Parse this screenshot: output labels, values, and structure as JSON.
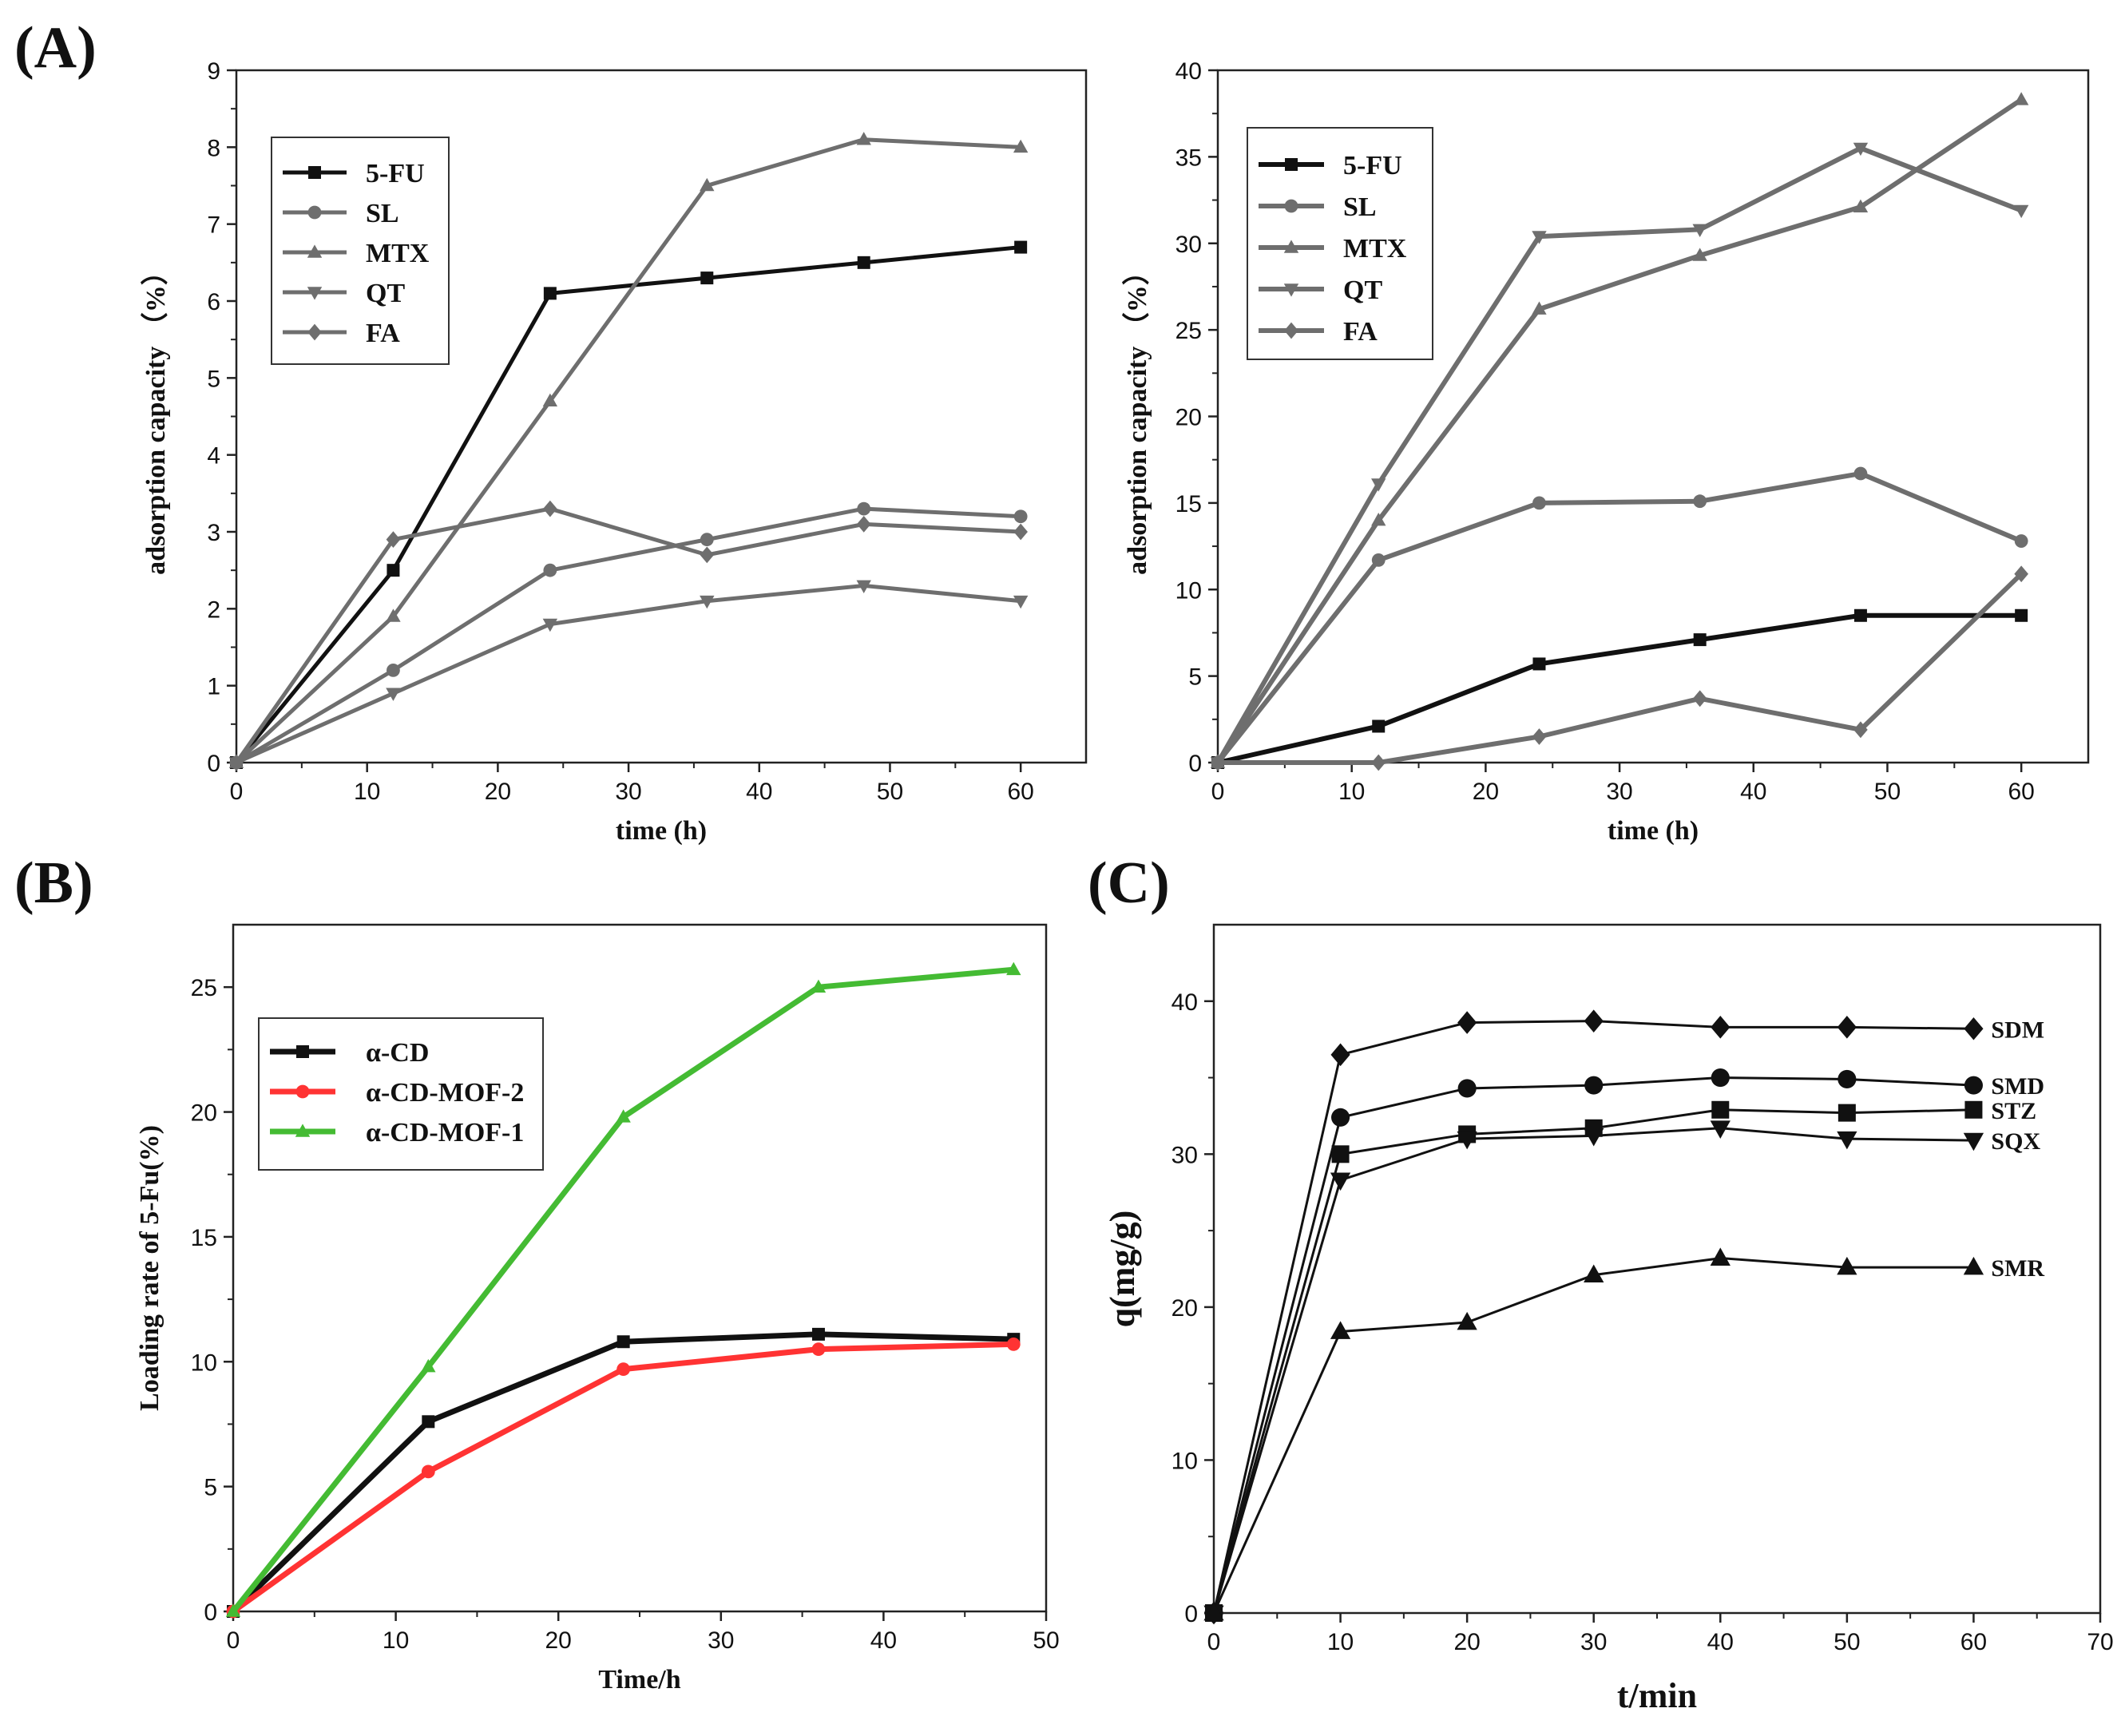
{
  "panel_labels": {
    "a": "(A)",
    "b": "(B)",
    "c": "(C)"
  },
  "colors": {
    "black": "#111111",
    "gray": "#6e6e6e",
    "red": "#ff3333",
    "green": "#44bb33",
    "axis": "#222222"
  },
  "chart_data": [
    {
      "id": "A1",
      "type": "line",
      "title": "",
      "xlabel": "time (h)",
      "ylabel": "adsorption capacity （%）",
      "xlim": [
        0,
        65
      ],
      "ylim": [
        0,
        9
      ],
      "xticks": [
        0,
        10,
        20,
        30,
        40,
        50,
        60
      ],
      "yticks": [
        0,
        1,
        2,
        3,
        4,
        5,
        6,
        7,
        8,
        9
      ],
      "x": [
        0,
        12,
        24,
        36,
        48,
        60
      ],
      "legend_position": "top-left",
      "series": [
        {
          "name": "5-FU",
          "marker": "square",
          "color": "#111111",
          "values": [
            0,
            2.5,
            6.1,
            6.3,
            6.5,
            6.7
          ]
        },
        {
          "name": "SL",
          "marker": "circle",
          "color": "#6e6e6e",
          "values": [
            0,
            1.2,
            2.5,
            2.9,
            3.3,
            3.2
          ]
        },
        {
          "name": "MTX",
          "marker": "triangle-up",
          "color": "#6e6e6e",
          "values": [
            0,
            1.9,
            4.7,
            7.5,
            8.1,
            8.0
          ]
        },
        {
          "name": "QT",
          "marker": "triangle-down",
          "color": "#6e6e6e",
          "values": [
            0,
            0.9,
            1.8,
            2.1,
            2.3,
            2.1
          ]
        },
        {
          "name": "FA",
          "marker": "diamond",
          "color": "#6e6e6e",
          "values": [
            0,
            2.9,
            3.3,
            2.7,
            3.1,
            3.0
          ]
        }
      ]
    },
    {
      "id": "A2",
      "type": "line",
      "title": "",
      "xlabel": "time (h)",
      "ylabel": "adsorption capacity （%）",
      "xlim": [
        0,
        65
      ],
      "ylim": [
        0,
        40
      ],
      "xticks": [
        0,
        10,
        20,
        30,
        40,
        50,
        60
      ],
      "yticks": [
        0,
        5,
        10,
        15,
        20,
        25,
        30,
        35,
        40
      ],
      "x": [
        0,
        12,
        24,
        36,
        48,
        60
      ],
      "legend_position": "top-left",
      "series": [
        {
          "name": "5-FU",
          "marker": "square",
          "color": "#111111",
          "values": [
            0,
            2.1,
            5.7,
            7.1,
            8.5,
            8.5
          ]
        },
        {
          "name": "SL",
          "marker": "circle",
          "color": "#6e6e6e",
          "values": [
            0,
            11.7,
            15.0,
            15.1,
            16.7,
            12.8
          ]
        },
        {
          "name": "MTX",
          "marker": "triangle-up",
          "color": "#6e6e6e",
          "values": [
            0,
            14.0,
            26.2,
            29.3,
            32.1,
            38.3
          ]
        },
        {
          "name": "QT",
          "marker": "triangle-down",
          "color": "#6e6e6e",
          "values": [
            0,
            16.1,
            30.4,
            30.8,
            35.5,
            31.9
          ]
        },
        {
          "name": "FA",
          "marker": "diamond",
          "color": "#6e6e6e",
          "values": [
            0,
            0,
            1.5,
            3.7,
            1.9,
            10.9
          ]
        }
      ]
    },
    {
      "id": "B",
      "type": "line",
      "title": "",
      "xlabel": "Time/h",
      "ylabel": "Loading rate of 5-Fu(%)",
      "xlim": [
        0,
        50
      ],
      "ylim": [
        0,
        27.5
      ],
      "xticks": [
        0,
        10,
        20,
        30,
        40,
        50
      ],
      "yticks": [
        0,
        5,
        10,
        15,
        20,
        25
      ],
      "x": [
        0,
        12,
        24,
        36,
        48
      ],
      "legend_position": "top-left",
      "series": [
        {
          "name": "α-CD",
          "marker": "square",
          "color": "#111111",
          "values": [
            0,
            7.6,
            10.8,
            11.1,
            10.9
          ]
        },
        {
          "name": "α-CD-MOF-2",
          "marker": "circle",
          "color": "#ff3333",
          "values": [
            0,
            5.6,
            9.7,
            10.5,
            10.7
          ]
        },
        {
          "name": "α-CD-MOF-1",
          "marker": "triangle-up",
          "color": "#44bb33",
          "values": [
            0,
            9.8,
            19.8,
            25.0,
            25.7
          ]
        }
      ]
    },
    {
      "id": "C",
      "type": "line",
      "title": "",
      "xlabel": "t/min",
      "ylabel": "q(mg/g)",
      "xlim": [
        0,
        70
      ],
      "ylim": [
        0,
        45
      ],
      "xticks": [
        0,
        10,
        20,
        30,
        40,
        50,
        60,
        70
      ],
      "yticks": [
        0,
        10,
        20,
        30,
        40
      ],
      "x": [
        0,
        10,
        20,
        30,
        40,
        50,
        60
      ],
      "legend_position": "end-of-line labels",
      "series": [
        {
          "name": "SDM",
          "marker": "diamond",
          "color": "#111111",
          "values": [
            0,
            36.5,
            38.6,
            38.7,
            38.3,
            38.3,
            38.2
          ]
        },
        {
          "name": "SMD",
          "marker": "circle",
          "color": "#111111",
          "values": [
            0,
            32.4,
            34.3,
            34.5,
            35.0,
            34.9,
            34.5
          ]
        },
        {
          "name": "STZ",
          "marker": "square",
          "color": "#111111",
          "values": [
            0,
            30.0,
            31.3,
            31.7,
            32.9,
            32.7,
            32.9
          ]
        },
        {
          "name": "SQX",
          "marker": "triangle-down",
          "color": "#111111",
          "values": [
            0,
            28.3,
            31.0,
            31.2,
            31.7,
            31.0,
            30.9
          ]
        },
        {
          "name": "SMR",
          "marker": "triangle-up",
          "color": "#111111",
          "values": [
            0,
            18.4,
            19.0,
            22.1,
            23.2,
            22.6,
            22.6
          ]
        }
      ]
    }
  ]
}
